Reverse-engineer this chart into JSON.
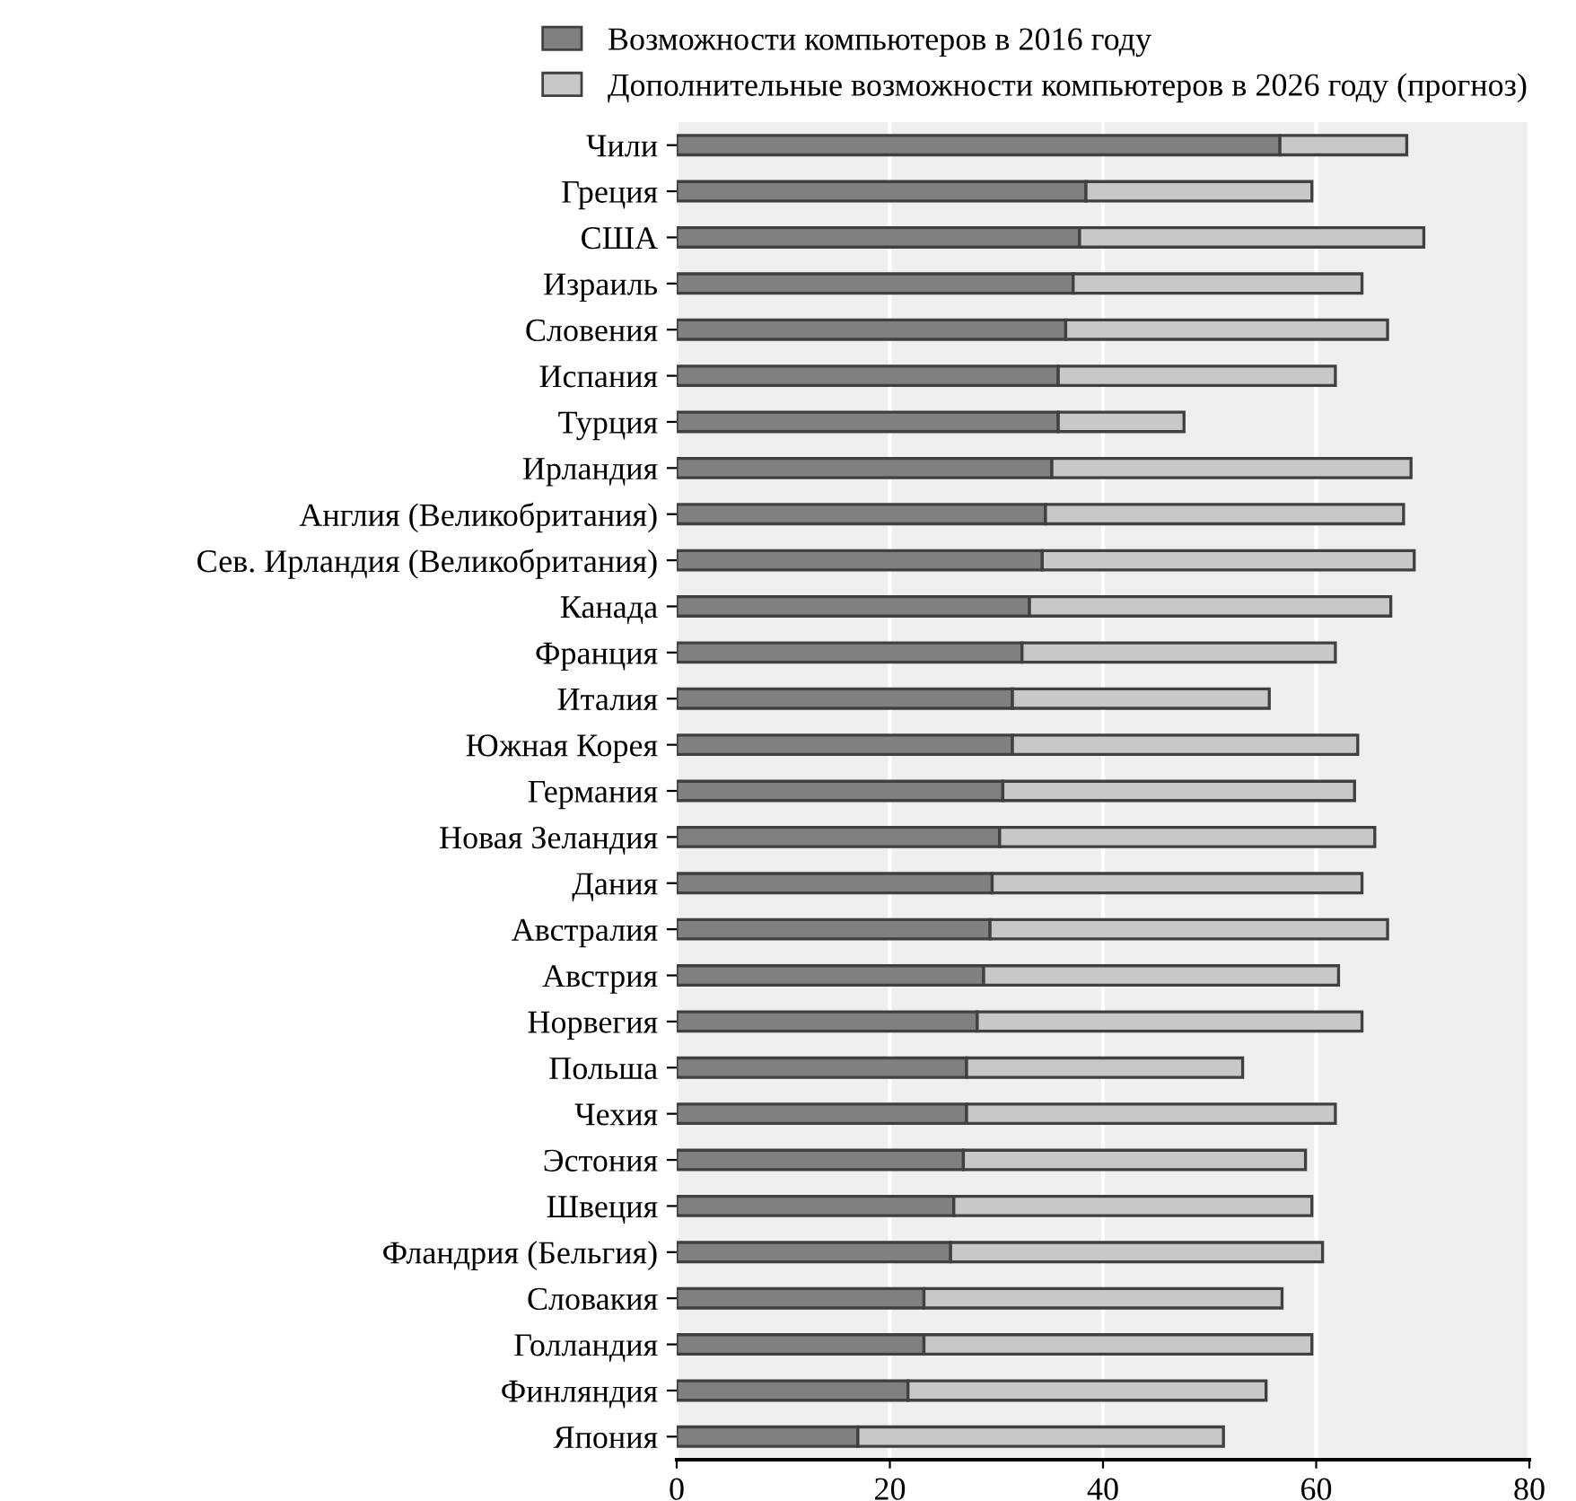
{
  "chart_data": {
    "type": "bar",
    "orientation": "horizontal",
    "stacked": true,
    "categories": [
      "Чили",
      "Греция",
      "США",
      "Израиль",
      "Словения",
      "Испания",
      "Турция",
      "Ирландия",
      "Англия (Великобритания)",
      "Сев. Ирландия (Великобритания)",
      "Канада",
      "Франция",
      "Италия",
      "Южная Корея",
      "Германия",
      "Новая Зеландия",
      "Дания",
      "Австралия",
      "Австрия",
      "Норвегия",
      "Польша",
      "Чехия",
      "Эстония",
      "Швеция",
      "Фландрия (Бельгия)",
      "Словакия",
      "Голландия",
      "Финляндия",
      "Япония"
    ],
    "series": [
      {
        "name": "Возможности компьютеров в 2016 году",
        "color": "#808080",
        "values": [
          56.6,
          38.4,
          37.8,
          37.2,
          36.5,
          35.8,
          35.8,
          35.2,
          34.6,
          34.3,
          33.1,
          32.4,
          31.5,
          31.5,
          30.6,
          30.3,
          29.6,
          29.4,
          28.8,
          28.2,
          27.2,
          27.2,
          26.9,
          26.0,
          25.7,
          23.2,
          23.2,
          21.7,
          17.0
        ]
      },
      {
        "name": "Дополнительные возможности компьютеров в 2026 году (прогноз)",
        "color": "#c8c8c8",
        "values": [
          11.9,
          21.2,
          32.3,
          27.1,
          30.2,
          26.0,
          11.8,
          33.7,
          33.6,
          34.9,
          33.9,
          29.4,
          24.1,
          32.4,
          33.0,
          35.2,
          34.7,
          37.3,
          33.3,
          36.1,
          25.9,
          34.6,
          32.1,
          33.6,
          34.9,
          33.6,
          36.4,
          33.6,
          34.3
        ]
      }
    ],
    "xlim": [
      0,
      80
    ],
    "xticks": [
      0,
      20,
      40,
      60,
      80
    ],
    "grid": "x",
    "legend": "top"
  }
}
